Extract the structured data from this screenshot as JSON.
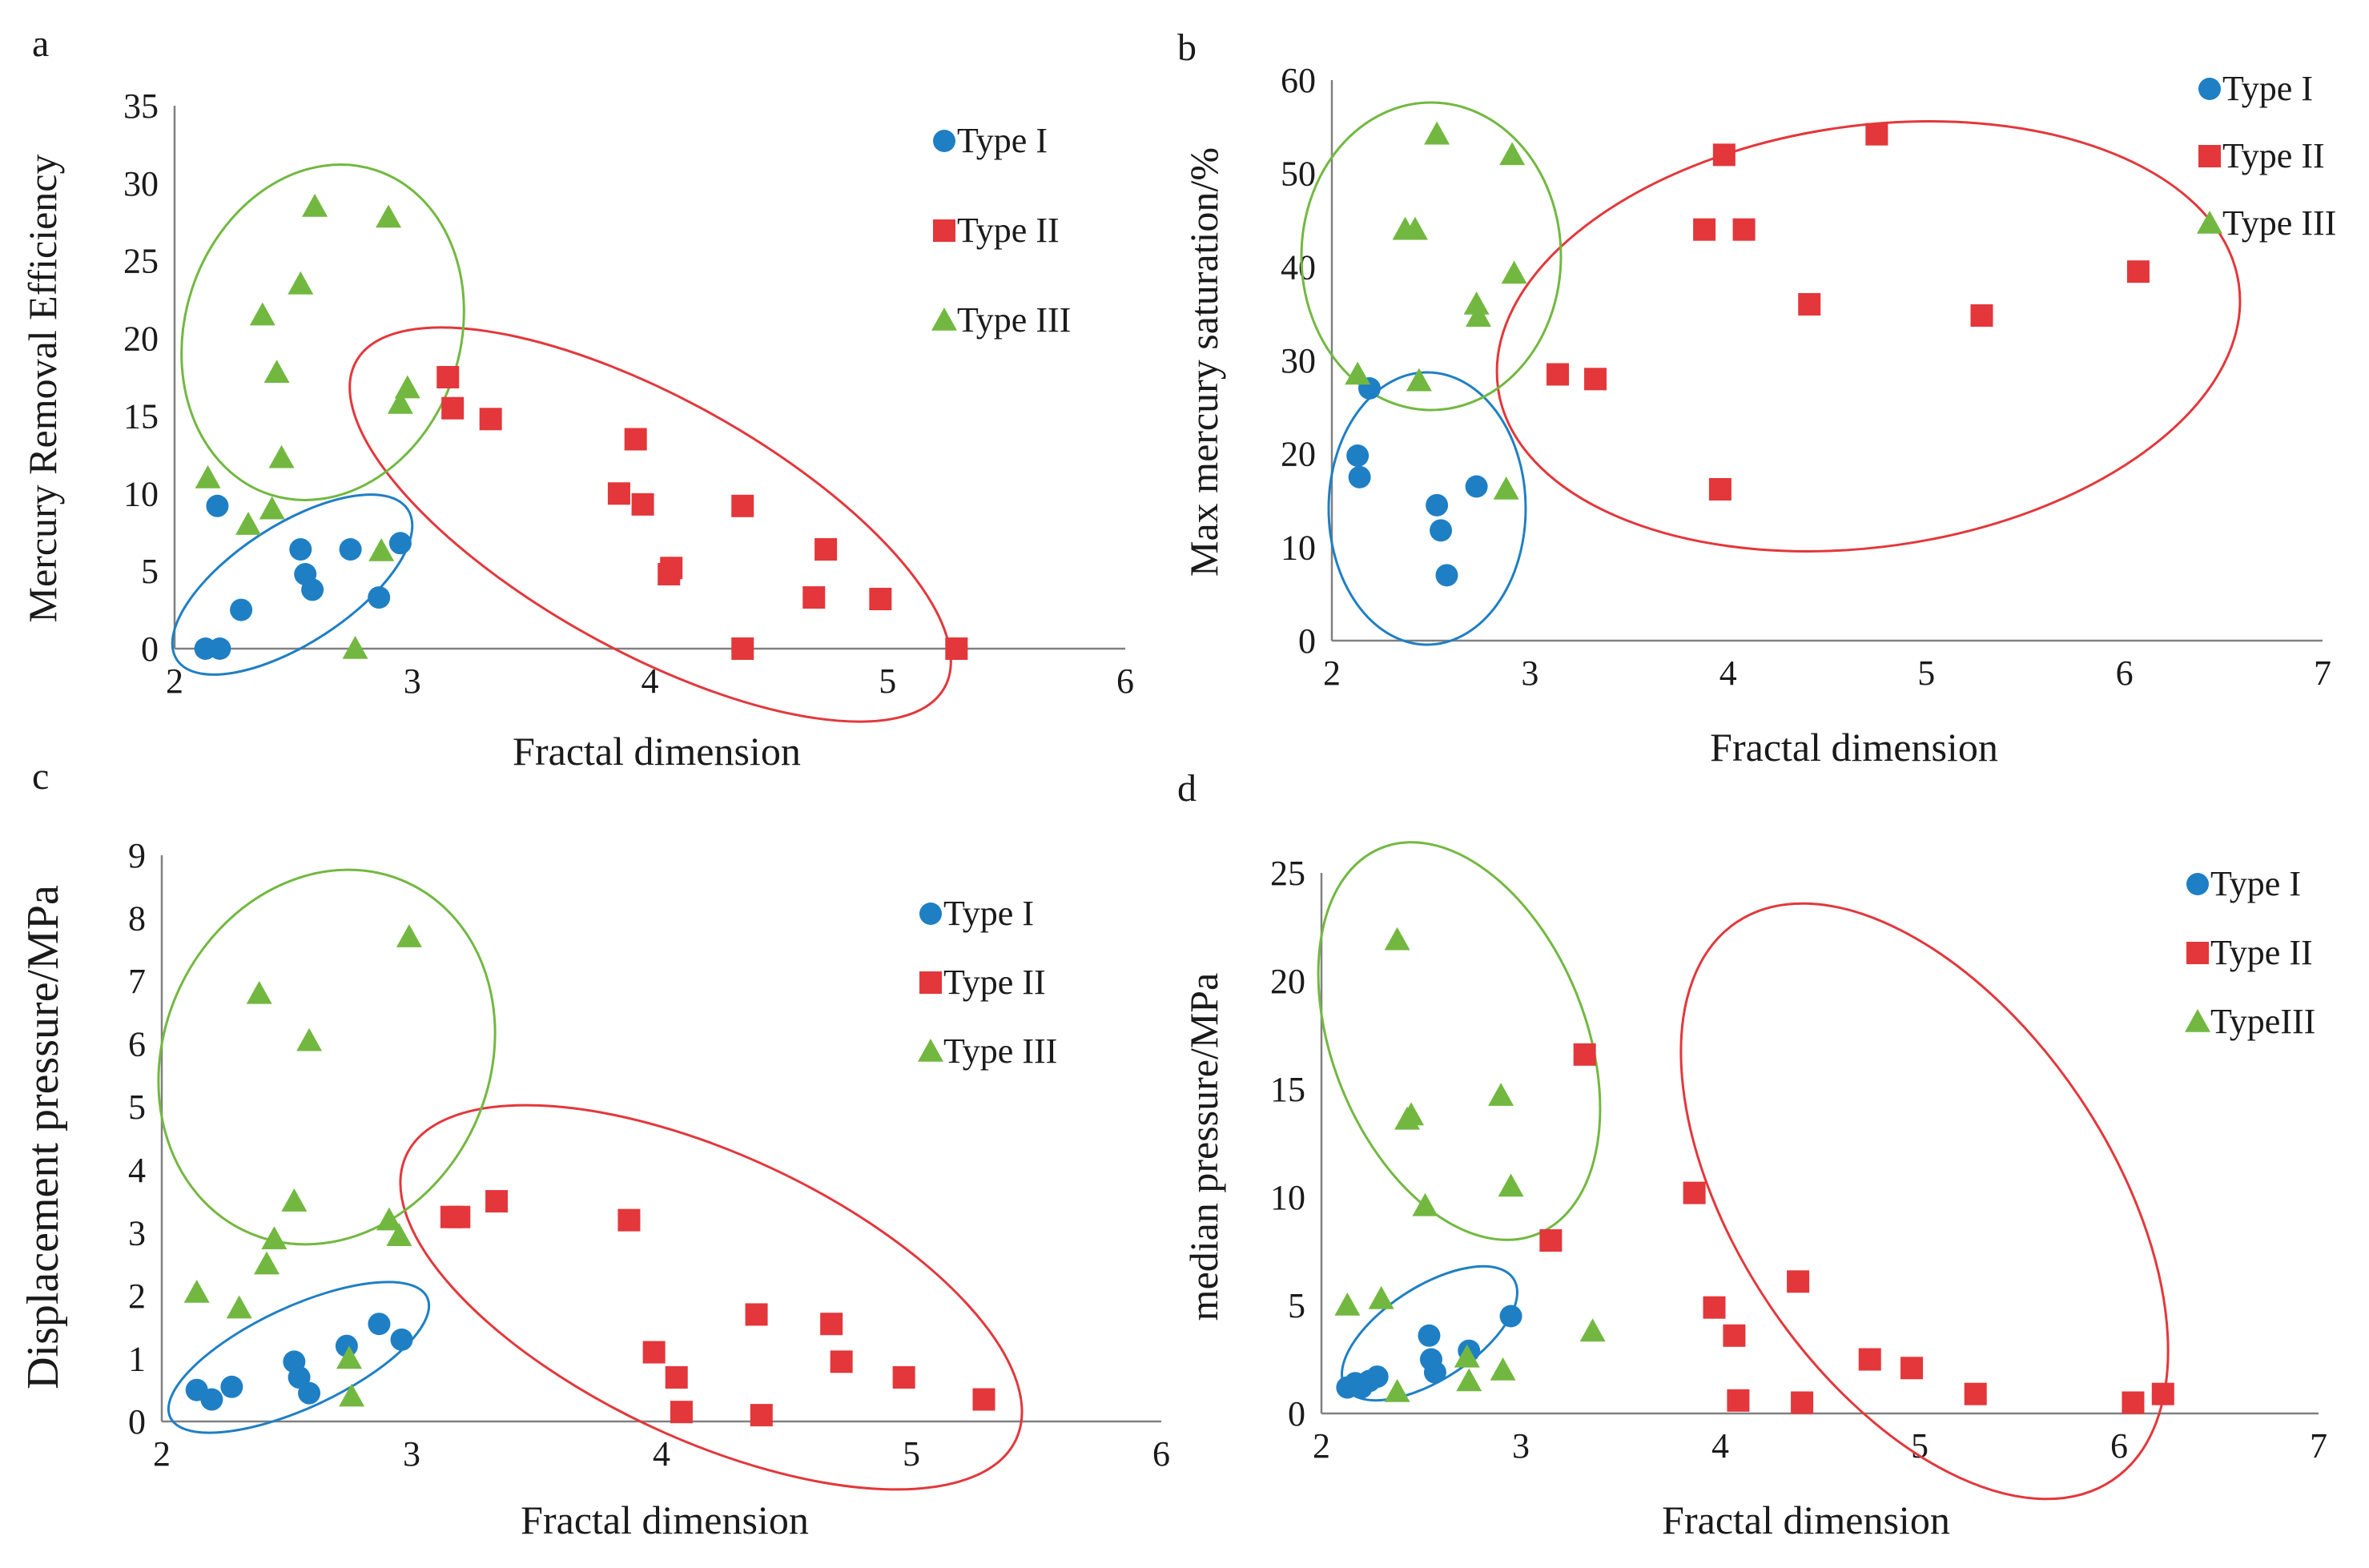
{
  "colors": {
    "type1": "#1f7fc4",
    "type2": "#e3373b",
    "type3": "#72b840",
    "axis": "#808080",
    "text": "#1a1a1a"
  },
  "chart_data": [
    {
      "panel": "a",
      "type": "scatter",
      "xlabel": "Fractal dimension",
      "ylabel": "Mercury Removal Efficiency",
      "xlim": [
        2,
        6
      ],
      "ylim": [
        0,
        35
      ],
      "xticks": [
        2,
        3,
        4,
        5,
        6
      ],
      "yticks": [
        0,
        5,
        10,
        15,
        20,
        25,
        30,
        35
      ],
      "legend": "top-right",
      "series": [
        {
          "name": "Type I",
          "marker": "circle",
          "color": "#1f7fc4",
          "points": [
            [
              2.13,
              0
            ],
            [
              2.19,
              0
            ],
            [
              2.18,
              9.2
            ],
            [
              2.28,
              2.5
            ],
            [
              2.53,
              6.4
            ],
            [
              2.55,
              4.8
            ],
            [
              2.58,
              3.8
            ],
            [
              2.74,
              6.4
            ],
            [
              2.86,
              3.3
            ],
            [
              2.95,
              6.8
            ]
          ]
        },
        {
          "name": "Type II",
          "marker": "square",
          "color": "#e3373b",
          "points": [
            [
              3.15,
              17.5
            ],
            [
              3.17,
              15.5
            ],
            [
              3.33,
              14.8
            ],
            [
              3.87,
              10
            ],
            [
              3.94,
              13.5
            ],
            [
              3.97,
              9.3
            ],
            [
              4.08,
              4.8
            ],
            [
              4.09,
              5.2
            ],
            [
              4.39,
              0
            ],
            [
              4.39,
              9.2
            ],
            [
              4.69,
              3.3
            ],
            [
              4.74,
              6.4
            ],
            [
              4.97,
              3.2
            ],
            [
              5.29,
              0
            ]
          ]
        },
        {
          "name": "Type III",
          "marker": "triangle",
          "color": "#72b840",
          "points": [
            [
              2.14,
              11
            ],
            [
              2.31,
              8
            ],
            [
              2.37,
              21.5
            ],
            [
              2.41,
              9
            ],
            [
              2.43,
              17.8
            ],
            [
              2.45,
              12.3
            ],
            [
              2.53,
              23.5
            ],
            [
              2.59,
              28.5
            ],
            [
              2.76,
              0
            ],
            [
              2.87,
              6.3
            ],
            [
              2.9,
              27.8
            ],
            [
              2.95,
              15.8
            ],
            [
              2.98,
              16.8
            ]
          ]
        }
      ]
    },
    {
      "panel": "b",
      "type": "scatter",
      "xlabel": "Fractal dimension",
      "ylabel": "Max mercury saturation/%",
      "xlim": [
        2,
        7
      ],
      "ylim": [
        0,
        60
      ],
      "xticks": [
        2,
        3,
        4,
        5,
        6,
        7
      ],
      "yticks": [
        0,
        10,
        20,
        30,
        40,
        50,
        60
      ],
      "legend": "top-right",
      "series": [
        {
          "name": "Type I",
          "marker": "circle",
          "color": "#1f7fc4",
          "points": [
            [
              2.13,
              19.8
            ],
            [
              2.14,
              17.5
            ],
            [
              2.19,
              27
            ],
            [
              2.53,
              14.5
            ],
            [
              2.55,
              11.8
            ],
            [
              2.58,
              7
            ],
            [
              2.73,
              16.5
            ]
          ]
        },
        {
          "name": "Type  II",
          "marker": "square",
          "color": "#e3373b",
          "points": [
            [
              3.14,
              28.5
            ],
            [
              3.33,
              28
            ],
            [
              3.88,
              44
            ],
            [
              3.96,
              16.2
            ],
            [
              3.98,
              52
            ],
            [
              4.08,
              44
            ],
            [
              4.41,
              36
            ],
            [
              4.75,
              54.2
            ],
            [
              5.28,
              34.8
            ],
            [
              6.07,
              39.5
            ]
          ]
        },
        {
          "name": "Type III",
          "marker": "triangle",
          "color": "#72b840",
          "points": [
            [
              2.13,
              28.5
            ],
            [
              2.37,
              44
            ],
            [
              2.42,
              44
            ],
            [
              2.44,
              27.8
            ],
            [
              2.53,
              54.2
            ],
            [
              2.73,
              36
            ],
            [
              2.74,
              34.7
            ],
            [
              2.88,
              16.2
            ],
            [
              2.91,
              52
            ],
            [
              2.92,
              39.3
            ]
          ]
        }
      ]
    },
    {
      "panel": "c",
      "type": "scatter",
      "xlabel": "Fractal dimension",
      "ylabel": "Displacement pressure/MPa",
      "xlim": [
        2,
        6
      ],
      "ylim": [
        0,
        9
      ],
      "xticks": [
        2,
        3,
        4,
        5,
        6
      ],
      "yticks": [
        0,
        1,
        2,
        3,
        4,
        5,
        6,
        7,
        8,
        9
      ],
      "legend": "top-right",
      "series": [
        {
          "name": "Type I",
          "marker": "circle",
          "color": "#1f7fc4",
          "points": [
            [
              2.14,
              0.5
            ],
            [
              2.2,
              0.35
            ],
            [
              2.28,
              0.55
            ],
            [
              2.53,
              0.95
            ],
            [
              2.55,
              0.7
            ],
            [
              2.59,
              0.45
            ],
            [
              2.74,
              1.2
            ],
            [
              2.87,
              1.55
            ],
            [
              2.96,
              1.3
            ]
          ]
        },
        {
          "name": "Type  II",
          "marker": "square",
          "color": "#e3373b",
          "points": [
            [
              3.16,
              3.25
            ],
            [
              3.19,
              3.25
            ],
            [
              3.34,
              3.5
            ],
            [
              3.87,
              3.2
            ],
            [
              3.97,
              1.1
            ],
            [
              4.06,
              0.7
            ],
            [
              4.08,
              0.15
            ],
            [
              4.38,
              1.7
            ],
            [
              4.4,
              0.1
            ],
            [
              4.68,
              1.55
            ],
            [
              4.72,
              0.95
            ],
            [
              4.97,
              0.7
            ],
            [
              5.29,
              0.35
            ]
          ]
        },
        {
          "name": "Type III",
          "marker": "triangle",
          "color": "#72b840",
          "points": [
            [
              2.14,
              2.05
            ],
            [
              2.31,
              1.8
            ],
            [
              2.39,
              6.8
            ],
            [
              2.42,
              2.5
            ],
            [
              2.45,
              2.9
            ],
            [
              2.53,
              3.5
            ],
            [
              2.59,
              6.05
            ],
            [
              2.75,
              1.0
            ],
            [
              2.76,
              0.4
            ],
            [
              2.91,
              3.2
            ],
            [
              2.95,
              2.95
            ],
            [
              2.99,
              7.7
            ]
          ]
        }
      ]
    },
    {
      "panel": "d",
      "type": "scatter",
      "xlabel": "Fractal dimension",
      "ylabel": "median pressure/MPa",
      "xlim": [
        2,
        7
      ],
      "ylim": [
        0,
        25
      ],
      "xticks": [
        2,
        3,
        4,
        5,
        6,
        7
      ],
      "yticks": [
        0,
        5,
        10,
        15,
        20,
        25
      ],
      "legend": "top-right",
      "series": [
        {
          "name": "Type I",
          "marker": "circle",
          "color": "#1f7fc4",
          "points": [
            [
              2.13,
              1.2
            ],
            [
              2.17,
              1.4
            ],
            [
              2.2,
              1.2
            ],
            [
              2.24,
              1.5
            ],
            [
              2.28,
              1.7
            ],
            [
              2.54,
              3.6
            ],
            [
              2.55,
              2.5
            ],
            [
              2.57,
              1.9
            ],
            [
              2.74,
              2.9
            ],
            [
              2.95,
              4.5
            ]
          ]
        },
        {
          "name": "Type II",
          "marker": "square",
          "color": "#e3373b",
          "points": [
            [
              3.15,
              8
            ],
            [
              3.32,
              16.6
            ],
            [
              3.87,
              10.2
            ],
            [
              3.97,
              4.9
            ],
            [
              4.07,
              3.6
            ],
            [
              4.09,
              0.6
            ],
            [
              4.39,
              6.1
            ],
            [
              4.41,
              0.5
            ],
            [
              4.75,
              2.5
            ],
            [
              4.96,
              2.1
            ],
            [
              5.28,
              0.9
            ],
            [
              6.07,
              0.5
            ],
            [
              6.22,
              0.9
            ]
          ]
        },
        {
          "name": "TypeIII",
          "marker": "triangle",
          "color": "#72b840",
          "points": [
            [
              2.13,
              5
            ],
            [
              2.3,
              5.3
            ],
            [
              2.38,
              1
            ],
            [
              2.38,
              21.9
            ],
            [
              2.43,
              13.6
            ],
            [
              2.45,
              13.8
            ],
            [
              2.52,
              9.6
            ],
            [
              2.73,
              2.6
            ],
            [
              2.74,
              1.5
            ],
            [
              2.9,
              14.7
            ],
            [
              2.91,
              2
            ],
            [
              2.95,
              10.5
            ],
            [
              3.36,
              3.8
            ]
          ]
        }
      ]
    }
  ]
}
